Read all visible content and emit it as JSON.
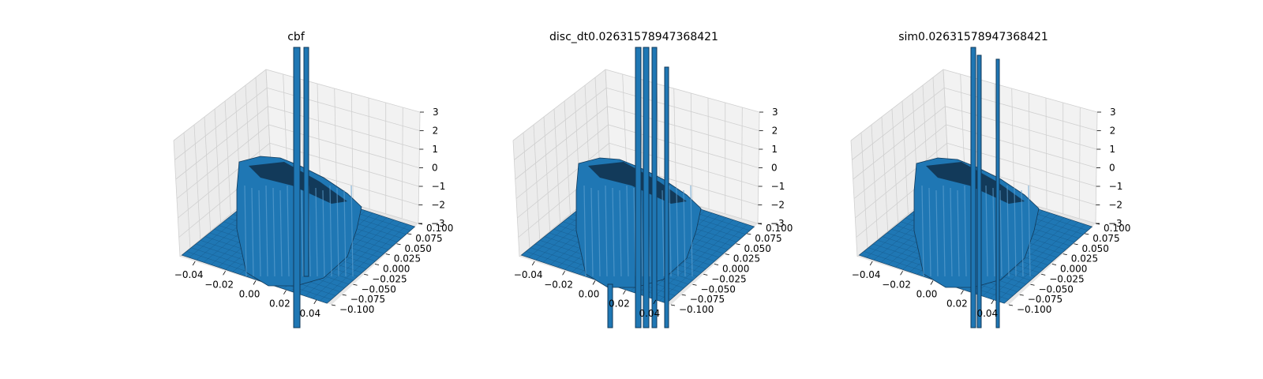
{
  "figure": {
    "colors": {
      "surface": "#1f77b4",
      "surface_dark": "#123a5a",
      "pane": "#f2f2f2",
      "pane_left": "#ececec",
      "grid": "#d0d0d0"
    }
  },
  "chart_data": [
    {
      "type": "surface",
      "title": "cbf",
      "xlabel": "",
      "ylabel": "",
      "zlabel": "",
      "x_ticks": [
        "−0.04",
        "−0.02",
        "0.00",
        "0.02",
        "0.04"
      ],
      "y_ticks": [
        "0.100",
        "0.075",
        "0.050",
        "0.025",
        "0.000",
        "−0.025",
        "−0.050",
        "−0.075",
        "−0.100"
      ],
      "z_ticks": [
        "3",
        "2",
        "1",
        "0",
        "−1",
        "−2",
        "−3"
      ],
      "xlim": [
        -0.045,
        0.045
      ],
      "ylim": [
        -0.1,
        0.1
      ],
      "zlim": [
        -3,
        3
      ],
      "surface_color": "#1f77b4",
      "grid": true
    },
    {
      "type": "surface",
      "title": "disc_dt0.02631578947368421",
      "xlabel": "",
      "ylabel": "",
      "zlabel": "",
      "x_ticks": [
        "−0.04",
        "−0.02",
        "0.00",
        "0.02",
        "0.04"
      ],
      "y_ticks": [
        "0.100",
        "0.075",
        "0.050",
        "0.025",
        "0.000",
        "−0.025",
        "−0.050",
        "−0.075",
        "−0.100"
      ],
      "z_ticks": [
        "3",
        "2",
        "1",
        "0",
        "−1",
        "−2",
        "−3"
      ],
      "xlim": [
        -0.045,
        0.045
      ],
      "ylim": [
        -0.1,
        0.1
      ],
      "zlim": [
        -3,
        3
      ],
      "surface_color": "#1f77b4",
      "grid": true
    },
    {
      "type": "surface",
      "title": "sim0.02631578947368421",
      "xlabel": "",
      "ylabel": "",
      "zlabel": "",
      "x_ticks": [
        "−0.04",
        "−0.02",
        "0.00",
        "0.02",
        "0.04"
      ],
      "y_ticks": [
        "0.100",
        "0.075",
        "0.050",
        "0.025",
        "0.000",
        "−0.025",
        "−0.050",
        "−0.075",
        "−0.100"
      ],
      "z_ticks": [
        "3",
        "2",
        "1",
        "0",
        "−1",
        "−2",
        "−3"
      ],
      "xlim": [
        -0.045,
        0.045
      ],
      "ylim": [
        -0.1,
        0.1
      ],
      "zlim": [
        -3,
        3
      ],
      "surface_color": "#1f77b4",
      "grid": true
    }
  ]
}
